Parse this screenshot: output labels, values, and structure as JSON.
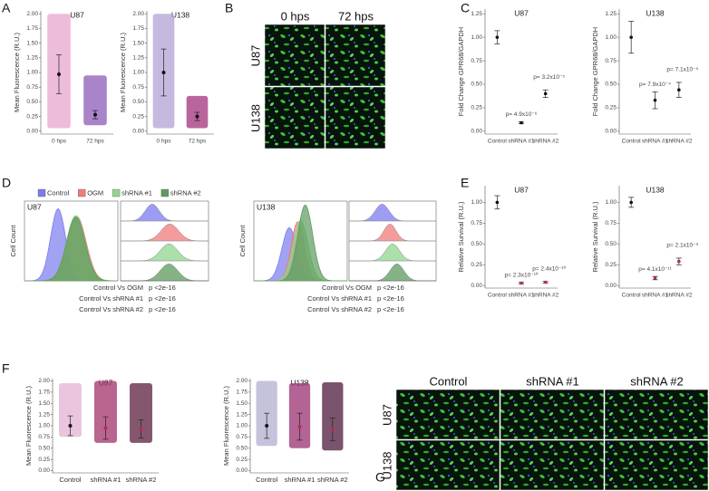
{
  "panel_letters": [
    "A",
    "B",
    "C",
    "D",
    "E",
    "F",
    "G"
  ],
  "micrographs": [
    {
      "columns": [
        "0 hps",
        "72 hps"
      ],
      "rows": [
        "U87",
        "U138"
      ]
    },
    {
      "columns": [
        "Control",
        "shRNA #1",
        "shRNA #2"
      ],
      "rows": [
        "U87",
        "U138"
      ]
    }
  ],
  "chart_data": [
    {
      "type": "strip",
      "title": "U87",
      "y_label": "Mean Fluorescence (R.U.)",
      "categories": [
        "0 hps",
        "72 hps"
      ],
      "values": [
        0.97,
        0.28
      ],
      "errors": [
        0.33,
        0.07
      ],
      "min": [
        0.05,
        0.1
      ],
      "max": [
        2.0,
        0.95
      ],
      "colors": [
        "#e7a6cf",
        "#8e5bb5"
      ],
      "ylim": [
        -0.05,
        2.05
      ],
      "yticks": [
        {
          "value": 0,
          "label": "0.00"
        },
        {
          "value": 0.25,
          "label": "0.25"
        },
        {
          "value": 0.5,
          "label": "0.50"
        },
        {
          "value": 0.75,
          "label": "0.75"
        },
        {
          "value": 1,
          "label": "1.00"
        },
        {
          "value": 1.25,
          "label": "1.25"
        },
        {
          "value": 1.5,
          "label": "1.50"
        },
        {
          "value": 1.75,
          "label": "1.75"
        },
        {
          "value": 2,
          "label": "2.00"
        }
      ]
    },
    {
      "type": "strip",
      "title": "U138",
      "y_label": "Mean Fluorescence (R.U.)",
      "categories": [
        "0 hps",
        "72 hps"
      ],
      "values": [
        1.0,
        0.25
      ],
      "errors": [
        0.4,
        0.07
      ],
      "min": [
        0.05,
        0.05
      ],
      "max": [
        2.0,
        0.6
      ],
      "colors": [
        "#b3a2d6",
        "#a3307d"
      ],
      "ylim": [
        -0.05,
        2.05
      ],
      "yticks": [
        {
          "value": 0,
          "label": "0.00"
        },
        {
          "value": 0.25,
          "label": "0.25"
        },
        {
          "value": 0.5,
          "label": "0.50"
        },
        {
          "value": 0.75,
          "label": "0.75"
        },
        {
          "value": 1,
          "label": "1.00"
        },
        {
          "value": 1.25,
          "label": "1.25"
        },
        {
          "value": 1.5,
          "label": "1.50"
        },
        {
          "value": 1.75,
          "label": "1.75"
        },
        {
          "value": 2,
          "label": "2.00"
        }
      ]
    },
    {
      "type": "dot",
      "title": "U87",
      "y_label": "Fold Change GPR68/GAPDH",
      "categories": [
        "Control",
        "shRNA #1",
        "shRNA #2"
      ],
      "values": [
        1.0,
        0.09,
        0.4
      ],
      "errors": [
        0.07,
        0.01,
        0.04
      ],
      "p_labels": [
        null,
        "p= 4.9x10⁻⁶",
        "p= 3.2x10⁻⁵"
      ],
      "ylim": [
        -0.03,
        1.3
      ],
      "yticks": [
        {
          "value": 0,
          "label": "0.00"
        },
        {
          "value": 0.25,
          "label": "0.25"
        },
        {
          "value": 0.5,
          "label": "0.50"
        },
        {
          "value": 0.75,
          "label": "0.75"
        },
        {
          "value": 1,
          "label": "1.00"
        },
        {
          "value": 1.25,
          "label": "1.25"
        }
      ]
    },
    {
      "type": "dot",
      "title": "U138",
      "y_label": "Fold Change GPR68/GAPDH",
      "categories": [
        "Control",
        "shRNA #1",
        "shRNA #2"
      ],
      "values": [
        1.0,
        0.33,
        0.44
      ],
      "errors": [
        0.17,
        0.09,
        0.08
      ],
      "p_labels": [
        null,
        "p= 7.9x10⁻⁴",
        "p= 7.1x10⁻⁵"
      ],
      "ylim": [
        -0.03,
        1.3
      ],
      "yticks": [
        {
          "value": 0,
          "label": "0.00"
        },
        {
          "value": 0.25,
          "label": "0.25"
        },
        {
          "value": 0.5,
          "label": "0.50"
        },
        {
          "value": 0.75,
          "label": "0.75"
        },
        {
          "value": 1,
          "label": "1.00"
        },
        {
          "value": 1.25,
          "label": "1.25"
        }
      ]
    },
    {
      "type": "density",
      "title": "U87",
      "y_label": "Cell Count",
      "legend": true,
      "series": [
        {
          "name": "Control",
          "color": "#7b7bf0",
          "peak": 0.36,
          "width": 0.08,
          "height": 0.95
        },
        {
          "name": "OGM",
          "color": "#f07b7b",
          "peak": 0.56,
          "width": 0.1,
          "height": 0.85
        },
        {
          "name": "shRNA #1",
          "color": "#8fd68f",
          "peak": 0.55,
          "width": 0.1,
          "height": 0.86
        },
        {
          "name": "shRNA #2",
          "color": "#5d9a5d",
          "peak": 0.55,
          "width": 0.1,
          "height": 0.84
        }
      ],
      "comparisons": [
        "Control Vs OGM",
        "Control Vs shRNA #1",
        "Control Vs shRNA #2"
      ],
      "p_values": [
        "p <2e-16",
        "p <2e-16",
        "p <2e-16"
      ]
    },
    {
      "type": "density",
      "title": "U138",
      "y_label": "Cell Count",
      "series": [
        {
          "color": "#7b7bf0",
          "peak": 0.38,
          "width": 0.08,
          "height": 0.7
        },
        {
          "color": "#f07b7b",
          "peak": 0.47,
          "width": 0.07,
          "height": 0.78
        },
        {
          "color": "#8fd68f",
          "peak": 0.5,
          "width": 0.08,
          "height": 0.8
        },
        {
          "color": "#5d9a5d",
          "peak": 0.55,
          "width": 0.08,
          "height": 1.0
        }
      ],
      "comparisons": [
        "Control Vs OGM",
        "Control Vs shRNA #1",
        "Control Vs shRNA #2"
      ],
      "p_values": [
        "p <2e-16",
        "p <2e-16",
        "p <2e-16"
      ]
    },
    {
      "type": "dot",
      "title": "U87",
      "y_label": "Relative Survival (R.U.)",
      "categories": [
        "Control",
        "shRNA #1",
        "shRNA #2"
      ],
      "values": [
        1.0,
        0.03,
        0.04
      ],
      "errors": [
        0.08,
        0.01,
        0.01
      ],
      "p_labels": [
        null,
        "p= 2.3x10⁻¹⁰",
        "p= 2.4x10⁻¹⁰"
      ],
      "ylim": [
        -0.03,
        1.2
      ],
      "yticks": [
        {
          "value": 0,
          "label": "0.00"
        },
        {
          "value": 0.25,
          "label": "0.25"
        },
        {
          "value": 0.5,
          "label": "0.50"
        },
        {
          "value": 0.75,
          "label": "0.75"
        },
        {
          "value": 1,
          "label": "1.00"
        }
      ]
    },
    {
      "type": "dot",
      "title": "U138",
      "y_label": "Relative Survival (R.U.)",
      "categories": [
        "Control",
        "shRNA #1",
        "shRNA #2"
      ],
      "values": [
        1.0,
        0.09,
        0.29
      ],
      "errors": [
        0.06,
        0.02,
        0.04
      ],
      "p_labels": [
        null,
        "p= 4.1x10⁻¹¹",
        "p= 2.1x10⁻⁹"
      ],
      "ylim": [
        -0.03,
        1.2
      ],
      "yticks": [
        {
          "value": 0,
          "label": "0.00"
        },
        {
          "value": 0.25,
          "label": "0.25"
        },
        {
          "value": 0.5,
          "label": "0.50"
        },
        {
          "value": 0.75,
          "label": "0.75"
        },
        {
          "value": 1,
          "label": "1.00"
        }
      ]
    },
    {
      "type": "strip",
      "title": "U87",
      "y_label": "Mean Fluorescence (R.U.)",
      "categories": [
        "Control",
        "shRNA #1",
        "shRNA #2"
      ],
      "values": [
        1.0,
        0.95,
        0.93
      ],
      "errors": [
        0.22,
        0.25,
        0.2
      ],
      "min": [
        0.75,
        0.62,
        0.62
      ],
      "max": [
        1.95,
        2.0,
        1.95
      ],
      "colors": [
        "#e3b3d3",
        "#a3306b",
        "#5b1f3f"
      ],
      "ylim": [
        -0.05,
        2.05
      ],
      "yticks": [
        {
          "value": 0,
          "label": "0.00"
        },
        {
          "value": 0.25,
          "label": "0.25"
        },
        {
          "value": 0.5,
          "label": "0.50"
        },
        {
          "value": 0.75,
          "label": "0.75"
        },
        {
          "value": 1,
          "label": "1.00"
        },
        {
          "value": 1.25,
          "label": "1.25"
        },
        {
          "value": 1.5,
          "label": "1.50"
        },
        {
          "value": 1.75,
          "label": "1.75"
        },
        {
          "value": 2,
          "label": "2.00"
        }
      ]
    },
    {
      "type": "strip",
      "title": "U138",
      "y_label": "Mean Fluorescence (R.U.)",
      "categories": [
        "Control",
        "shRNA #1",
        "shRNA #2"
      ],
      "values": [
        1.0,
        0.98,
        0.92
      ],
      "errors": [
        0.28,
        0.3,
        0.25
      ],
      "min": [
        0.55,
        0.5,
        0.45
      ],
      "max": [
        2.0,
        1.95,
        1.97
      ],
      "colors": [
        "#b1aed0",
        "#9b2f72",
        "#4d1b3b"
      ],
      "ylim": [
        -0.05,
        2.05
      ],
      "yticks": [
        {
          "value": 0,
          "label": "0.00"
        },
        {
          "value": 0.25,
          "label": "0.25"
        },
        {
          "value": 0.5,
          "label": "0.50"
        },
        {
          "value": 0.75,
          "label": "0.75"
        },
        {
          "value": 1,
          "label": "1.00"
        },
        {
          "value": 1.25,
          "label": "1.25"
        },
        {
          "value": 1.5,
          "label": "1.50"
        },
        {
          "value": 1.75,
          "label": "1.75"
        },
        {
          "value": 2,
          "label": "2.00"
        }
      ]
    }
  ]
}
